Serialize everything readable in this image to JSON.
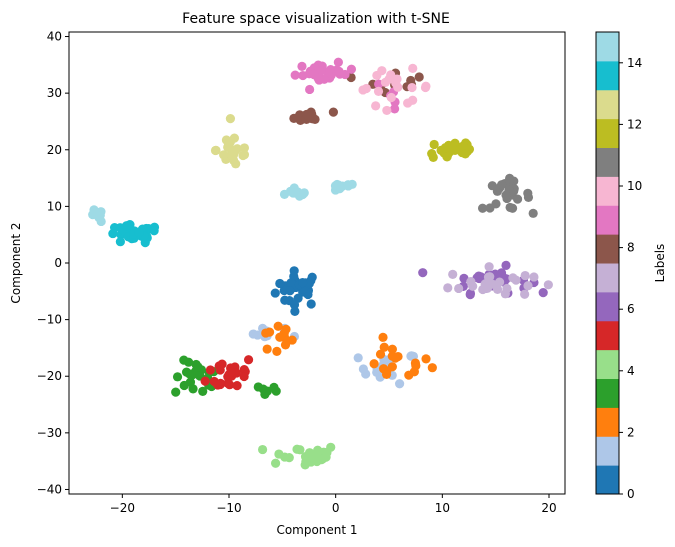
{
  "chart_data": {
    "type": "scatter",
    "title": "Feature space visualization with t-SNE",
    "xlabel": "Component 1",
    "ylabel": "Component 2",
    "xlim": [
      -25,
      21.5
    ],
    "ylim": [
      -40.8,
      40.8
    ],
    "xticks": [
      -20,
      -10,
      0,
      10,
      20
    ],
    "yticks": [
      -40,
      -30,
      -20,
      -10,
      0,
      10,
      20,
      30,
      40
    ],
    "grid": false,
    "colorbar": {
      "label": "Labels",
      "range": [
        0,
        15
      ],
      "ticks": [
        0,
        2,
        4,
        6,
        8,
        10,
        12,
        14
      ],
      "colors": [
        "#1f77b4",
        "#aec7e8",
        "#ff7f0e",
        "#2ca02c",
        "#98df8a",
        "#d62728",
        "#9467bd",
        "#c5b0d5",
        "#8c564b",
        "#e377c2",
        "#f7b6d2",
        "#7f7f7f",
        "#bcbd22",
        "#dbdb8d",
        "#17becf",
        "#9edae5"
      ]
    },
    "clusters": [
      {
        "label": 0,
        "cx": -3.5,
        "cy": -4.5,
        "sx": 1.5,
        "sy": 2.2,
        "n": 30
      },
      {
        "label": 1,
        "cx": -5.5,
        "cy": -12.5,
        "sx": 1.6,
        "sy": 0.9,
        "n": 10
      },
      {
        "label": 1,
        "cx": 5.0,
        "cy": -18.5,
        "sx": 2.0,
        "sy": 2.0,
        "n": 16
      },
      {
        "label": 2,
        "cx": -5.5,
        "cy": -13.5,
        "sx": 1.4,
        "sy": 2.0,
        "n": 12
      },
      {
        "label": 2,
        "cx": 5.5,
        "cy": -17.5,
        "sx": 2.4,
        "sy": 2.5,
        "n": 18
      },
      {
        "label": 3,
        "cx": -13.0,
        "cy": -20.5,
        "sx": 1.5,
        "sy": 2.2,
        "n": 22
      },
      {
        "label": 3,
        "cx": -6.5,
        "cy": -22.5,
        "sx": 0.7,
        "sy": 0.8,
        "n": 6
      },
      {
        "label": 4,
        "cx": -3.0,
        "cy": -34.0,
        "sx": 2.4,
        "sy": 1.4,
        "n": 28
      },
      {
        "label": 5,
        "cx": -9.8,
        "cy": -19.5,
        "sx": 1.6,
        "sy": 2.3,
        "n": 26
      },
      {
        "label": 6,
        "cx": 14.5,
        "cy": -3.0,
        "sx": 2.6,
        "sy": 1.6,
        "n": 32
      },
      {
        "label": 7,
        "cx": 14.5,
        "cy": -3.5,
        "sx": 2.8,
        "sy": 1.8,
        "n": 24
      },
      {
        "label": 8,
        "cx": -2.5,
        "cy": 25.8,
        "sx": 1.6,
        "sy": 0.7,
        "n": 16
      },
      {
        "label": 8,
        "cx": 5.5,
        "cy": 32.5,
        "sx": 2.0,
        "sy": 1.6,
        "n": 10
      },
      {
        "label": 9,
        "cx": -1.0,
        "cy": 33.5,
        "sx": 2.0,
        "sy": 1.2,
        "n": 28
      },
      {
        "label": 9,
        "cx": 5.5,
        "cy": 30.0,
        "sx": 1.2,
        "sy": 1.8,
        "n": 6
      },
      {
        "label": 10,
        "cx": 5.5,
        "cy": 31.0,
        "sx": 2.6,
        "sy": 2.2,
        "n": 20
      },
      {
        "label": 11,
        "cx": 16.0,
        "cy": 12.0,
        "sx": 1.6,
        "sy": 1.8,
        "n": 26
      },
      {
        "label": 12,
        "cx": 11.0,
        "cy": 20.0,
        "sx": 1.8,
        "sy": 1.6,
        "n": 26
      },
      {
        "label": 13,
        "cx": -9.5,
        "cy": 20.0,
        "sx": 1.2,
        "sy": 2.4,
        "n": 22
      },
      {
        "label": 14,
        "cx": -19.0,
        "cy": 5.0,
        "sx": 1.8,
        "sy": 1.2,
        "n": 32
      },
      {
        "label": 15,
        "cx": -22.5,
        "cy": 8.2,
        "sx": 0.5,
        "sy": 0.8,
        "n": 7
      },
      {
        "label": 15,
        "cx": -3.5,
        "cy": 12.5,
        "sx": 0.7,
        "sy": 0.6,
        "n": 9
      },
      {
        "label": 15,
        "cx": 0.5,
        "cy": 13.3,
        "sx": 1.0,
        "sy": 0.6,
        "n": 10
      }
    ]
  }
}
